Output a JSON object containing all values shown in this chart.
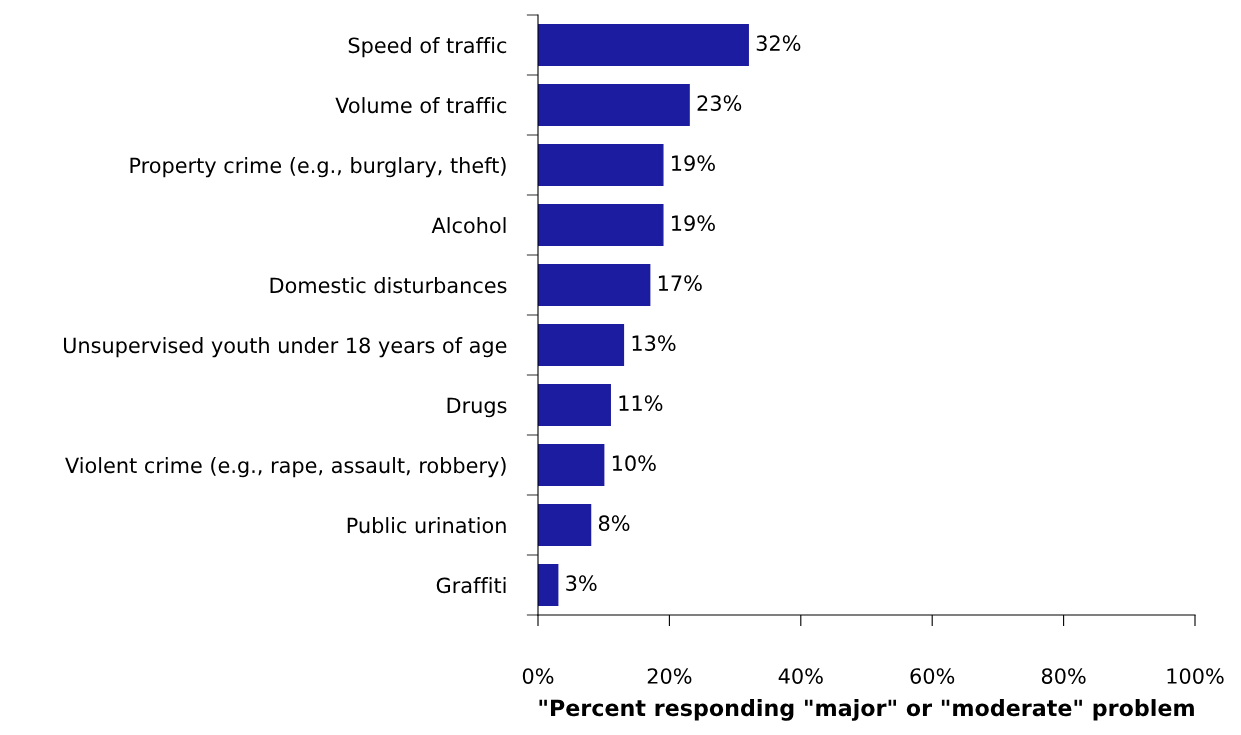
{
  "chart_data": {
    "type": "bar",
    "orientation": "horizontal",
    "xlabel": "\"Percent responding \"major\" or \"moderate\" problem",
    "categories": [
      "Speed of traffic",
      "Volume of traffic",
      "Property crime (e.g., burglary, theft)",
      "Alcohol",
      "Domestic disturbances",
      "Unsupervised youth under 18 years of age",
      "Drugs",
      "Violent crime (e.g., rape, assault, robbery)",
      "Public urination",
      "Graffiti"
    ],
    "values": [
      32,
      23,
      19,
      19,
      17,
      13,
      11,
      10,
      8,
      3
    ],
    "value_labels": [
      "32%",
      "23%",
      "19%",
      "19%",
      "17%",
      "13%",
      "11%",
      "10%",
      "8%",
      "3%"
    ],
    "color": "#1c1ca0",
    "xlim": [
      0,
      100
    ],
    "xticks": [
      {
        "value": 0,
        "label": "0%"
      },
      {
        "value": 20,
        "label": "20%"
      },
      {
        "value": 40,
        "label": "40%"
      },
      {
        "value": 60,
        "label": "60%"
      },
      {
        "value": 80,
        "label": "80%"
      },
      {
        "value": 100,
        "label": "100%"
      }
    ],
    "grid": false,
    "legend": false
  }
}
